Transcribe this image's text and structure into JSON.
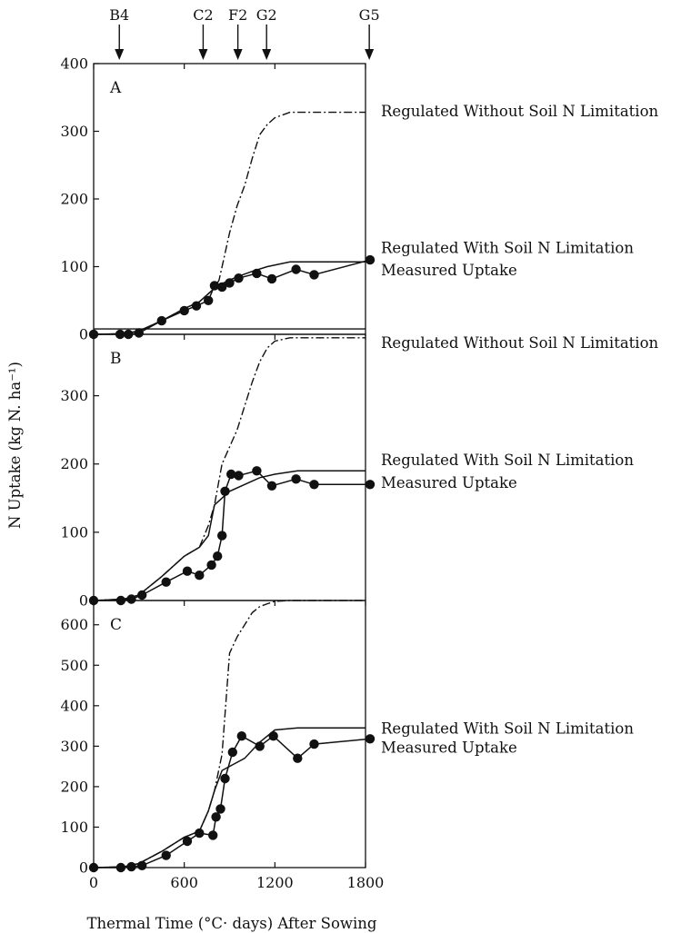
{
  "chart_data": [
    {
      "type": "line",
      "panel": "A",
      "xlim": [
        0,
        1800
      ],
      "ylim": [
        0,
        400
      ],
      "yticks": [
        0,
        100,
        200,
        300,
        400
      ],
      "series": [
        {
          "name": "Regulated Without Soil N Limitation",
          "style": "dashdot",
          "x": [
            0,
            200,
            300,
            450,
            600,
            700,
            760,
            800,
            830,
            860,
            900,
            950,
            1000,
            1050,
            1100,
            1150,
            1200,
            1300,
            1450,
            1800
          ],
          "y": [
            0,
            1,
            5,
            20,
            38,
            48,
            60,
            68,
            80,
            110,
            150,
            190,
            220,
            260,
            295,
            310,
            320,
            328,
            328,
            328
          ]
        },
        {
          "name": "Regulated With Soil N Limitation",
          "style": "solid",
          "x": [
            0,
            200,
            300,
            450,
            600,
            700,
            760,
            800,
            860,
            950,
            1050,
            1150,
            1300,
            1450,
            1800
          ],
          "y": [
            0,
            1,
            5,
            20,
            38,
            48,
            60,
            68,
            76,
            85,
            93,
            100,
            107,
            107,
            107
          ]
        },
        {
          "name": "Measured Uptake",
          "style": "markers-line",
          "x": [
            0,
            175,
            230,
            300,
            450,
            600,
            680,
            760,
            800,
            850,
            900,
            960,
            1080,
            1180,
            1340,
            1460,
            1830
          ],
          "y": [
            0,
            0,
            0,
            2,
            20,
            35,
            42,
            50,
            72,
            70,
            76,
            83,
            90,
            82,
            96,
            88,
            110
          ]
        }
      ],
      "extra_lines": [
        {
          "style": "solid",
          "y": 8
        }
      ]
    },
    {
      "type": "line",
      "panel": "B",
      "xlim": [
        0,
        1800
      ],
      "ylim": [
        0,
        390
      ],
      "yticks": [
        0,
        100,
        200,
        300
      ],
      "series": [
        {
          "name": "Regulated Without Soil N Limitation",
          "style": "dashdot",
          "x": [
            0,
            200,
            300,
            450,
            600,
            700,
            760,
            800,
            850,
            900,
            950,
            1000,
            1050,
            1100,
            1150,
            1200,
            1300,
            1800
          ],
          "y": [
            0,
            2,
            8,
            35,
            65,
            78,
            110,
            140,
            200,
            225,
            250,
            285,
            320,
            350,
            370,
            380,
            385,
            385
          ]
        },
        {
          "name": "Regulated With Soil N Limitation",
          "style": "solid",
          "x": [
            0,
            200,
            300,
            450,
            600,
            700,
            760,
            800,
            850,
            900,
            1000,
            1100,
            1200,
            1350,
            1800
          ],
          "y": [
            0,
            2,
            8,
            35,
            65,
            78,
            95,
            140,
            150,
            160,
            170,
            180,
            185,
            190,
            190
          ]
        },
        {
          "name": "Measured Uptake",
          "style": "markers-line",
          "x": [
            0,
            180,
            250,
            320,
            480,
            620,
            700,
            780,
            820,
            850,
            870,
            910,
            960,
            1080,
            1180,
            1340,
            1460,
            1830
          ],
          "y": [
            0,
            0,
            2,
            8,
            27,
            43,
            37,
            52,
            65,
            95,
            160,
            185,
            183,
            190,
            168,
            178,
            170,
            170
          ]
        }
      ]
    },
    {
      "type": "line",
      "panel": "C",
      "xlim": [
        0,
        1800
      ],
      "ylim": [
        0,
        660
      ],
      "yticks": [
        0,
        100,
        200,
        300,
        400,
        500,
        600
      ],
      "series": [
        {
          "name": "",
          "style": "dashdot",
          "x": [
            0,
            200,
            300,
            450,
            600,
            700,
            760,
            800,
            850,
            900,
            950,
            1000,
            1050,
            1100,
            1150,
            1200,
            1300,
            1800
          ],
          "y": [
            0,
            2,
            10,
            40,
            75,
            90,
            140,
            190,
            280,
            530,
            570,
            600,
            630,
            645,
            652,
            658,
            660,
            660
          ]
        },
        {
          "name": "Regulated With Soil N Limitation",
          "style": "solid",
          "x": [
            0,
            200,
            300,
            450,
            600,
            700,
            760,
            800,
            850,
            900,
            1000,
            1100,
            1200,
            1350,
            1800
          ],
          "y": [
            0,
            2,
            10,
            40,
            75,
            90,
            140,
            190,
            240,
            250,
            270,
            310,
            340,
            345,
            345
          ]
        },
        {
          "name": "Measured Uptake",
          "style": "markers-line",
          "x": [
            0,
            180,
            250,
            320,
            480,
            620,
            700,
            790,
            810,
            840,
            870,
            920,
            980,
            1100,
            1190,
            1350,
            1460,
            1830
          ],
          "y": [
            0,
            0,
            2,
            5,
            30,
            65,
            85,
            80,
            125,
            145,
            220,
            285,
            325,
            300,
            325,
            270,
            305,
            318
          ]
        }
      ]
    }
  ],
  "x_axis": {
    "ticks": [
      0,
      600,
      1200,
      1800
    ],
    "label": "Thermal Time (°C· days) After Sowing"
  },
  "y_axis_label": "N Uptake (kg N. ha⁻¹)",
  "stages": [
    {
      "label": "B4",
      "x": 170
    },
    {
      "label": "C2",
      "x": 725
    },
    {
      "label": "F2",
      "x": 955
    },
    {
      "label": "G2",
      "x": 1145
    },
    {
      "label": "G5",
      "x": 1825
    }
  ],
  "annotations": [
    {
      "text": "Regulated Without Soil N Limitation",
      "panel": 0,
      "y": 330
    },
    {
      "text": "Regulated With Soil N Limitation",
      "panel": 0,
      "y": 128
    },
    {
      "text": "Measured Uptake",
      "panel": 0,
      "y": 95
    },
    {
      "text": "Regulated Without Soil N Limitation",
      "panel": 1,
      "y": 378
    },
    {
      "text": "Regulated With Soil N Limitation",
      "panel": 1,
      "y": 206
    },
    {
      "text": "Measured Uptake",
      "panel": 1,
      "y": 173
    },
    {
      "text": "Regulated With Soil N Limitation",
      "panel": 2,
      "y": 345
    },
    {
      "text": "Measured Uptake",
      "panel": 2,
      "y": 298
    }
  ]
}
